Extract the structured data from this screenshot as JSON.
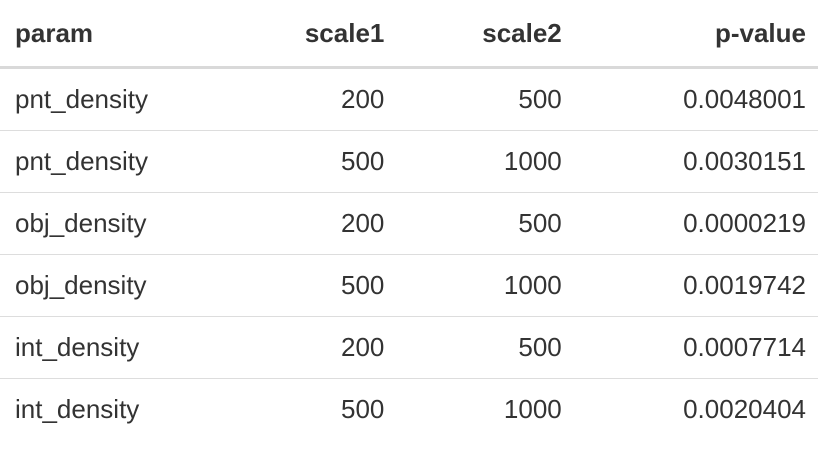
{
  "chart_data": {
    "type": "table",
    "columns": [
      "param",
      "scale1",
      "scale2",
      "p-value"
    ],
    "rows": [
      [
        "pnt_density",
        "200",
        "500",
        "0.0048001"
      ],
      [
        "pnt_density",
        "500",
        "1000",
        "0.0030151"
      ],
      [
        "obj_density",
        "200",
        "500",
        "0.0000219"
      ],
      [
        "obj_density",
        "500",
        "1000",
        "0.0019742"
      ],
      [
        "int_density",
        "200",
        "500",
        "0.0007714"
      ],
      [
        "int_density",
        "500",
        "1000",
        "0.0020404"
      ]
    ]
  },
  "colors": {
    "text": "#333333",
    "header_rule": "#d9d9d9",
    "row_rule": "#dddddd",
    "background": "#ffffff"
  }
}
